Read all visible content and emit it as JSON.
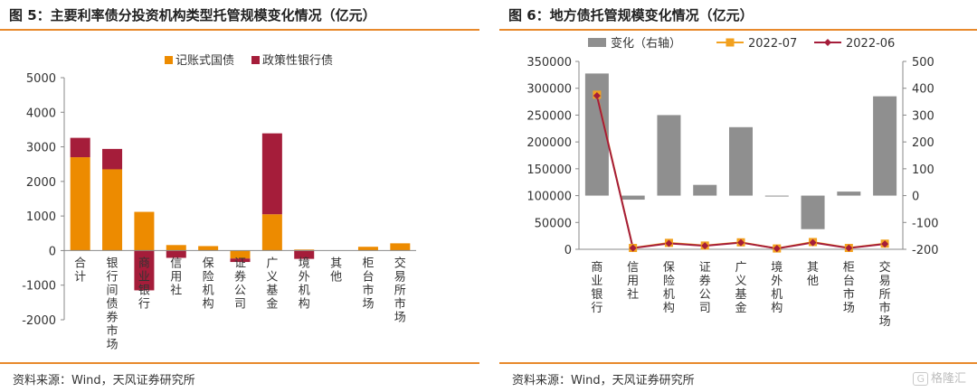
{
  "left": {
    "title": "图 5：主要利率债分投资机构类型托管规模变化情况（亿元）",
    "source": "资料来源：Wind，天风证券研究所"
  },
  "right": {
    "title": "图 6：地方债托管规模变化情况（亿元）",
    "source": "资料来源：Wind，天风证券研究所",
    "watermark": "格隆汇"
  },
  "colors": {
    "accent": "#e8892b",
    "orange": "#ed8b00",
    "crimson": "#a51d3a",
    "gray": "#8f8f8f",
    "marker": "#f2a11f"
  },
  "chart_data": [
    {
      "type": "bar",
      "stacked": true,
      "categories": [
        "合计",
        "银行间债券市场",
        "商业银行",
        "信用社",
        "保险机构",
        "证券公司",
        "广义基金",
        "境外机构",
        "其他",
        "柜台市场",
        "交易所市场"
      ],
      "series": [
        {
          "name": "记账式国债",
          "values": [
            2700,
            2350,
            1120,
            160,
            130,
            -230,
            1050,
            30,
            0,
            110,
            210
          ]
        },
        {
          "name": "政策性银行债",
          "values": [
            560,
            590,
            -1150,
            -210,
            0,
            -100,
            2340,
            -240,
            0,
            0,
            0
          ]
        }
      ],
      "ylim": [
        -2000,
        5000
      ],
      "yticks": [
        "-2000",
        "-1000",
        "0",
        "1000",
        "2000",
        "3000",
        "4000",
        "5000"
      ],
      "legend_position": "top-center",
      "grid": false
    },
    {
      "type": "bar+line",
      "categories": [
        "商业银行",
        "信用社",
        "保险机构",
        "证券公司",
        "广义基金",
        "境外机构",
        "其他",
        "柜台市场",
        "交易所市场"
      ],
      "bar_series": {
        "name": "变化（右轴）",
        "axis": "right",
        "values": [
          455,
          -15,
          300,
          40,
          255,
          -3,
          -125,
          15,
          370
        ]
      },
      "line_series": [
        {
          "name": "2022-07",
          "axis": "left",
          "values": [
            288000,
            2500,
            12000,
            7000,
            13000,
            1500,
            13500,
            2500,
            10500
          ]
        },
        {
          "name": "2022-06",
          "axis": "left",
          "values": [
            286000,
            2300,
            11000,
            6500,
            12500,
            1400,
            12500,
            2300,
            9800
          ]
        }
      ],
      "ylim_left": [
        0,
        350000
      ],
      "yticks_left": [
        "0",
        "50000",
        "100000",
        "150000",
        "200000",
        "250000",
        "300000",
        "350000"
      ],
      "ylim_right": [
        -200,
        500
      ],
      "yticks_right": [
        "-200",
        "-100",
        "0",
        "100",
        "200",
        "300",
        "400",
        "500"
      ],
      "legend_position": "top-center",
      "grid": false
    }
  ]
}
